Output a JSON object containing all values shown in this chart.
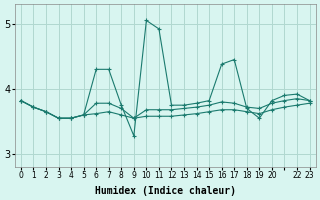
{
  "xlabel": "Humidex (Indice chaleur)",
  "background_color": "#d8f5f0",
  "grid_color": "#b0d8d0",
  "line_color": "#1a7a6e",
  "xlim": [
    -0.5,
    23.5
  ],
  "ylim": [
    2.8,
    5.3
  ],
  "yticks": [
    3,
    4,
    5
  ],
  "xtick_labels": [
    "0",
    "1",
    "2",
    "3",
    "4",
    "5",
    "6",
    "7",
    "8",
    "9",
    "10",
    "11",
    "12",
    "13",
    "14",
    "15",
    "16",
    "17",
    "18",
    "19",
    "20",
    "",
    "22",
    "23"
  ],
  "series": [
    [
      3.82,
      3.72,
      3.65,
      3.55,
      3.55,
      3.6,
      4.3,
      4.3,
      3.75,
      3.28,
      5.05,
      4.92,
      3.75,
      3.75,
      3.78,
      3.82,
      4.38,
      4.45,
      3.7,
      3.55,
      3.82,
      3.9,
      3.92,
      3.82
    ],
    [
      3.82,
      3.72,
      3.65,
      3.55,
      3.55,
      3.6,
      3.78,
      3.78,
      3.7,
      3.55,
      3.68,
      3.68,
      3.68,
      3.7,
      3.72,
      3.75,
      3.8,
      3.78,
      3.72,
      3.7,
      3.78,
      3.82,
      3.85,
      3.82
    ],
    [
      3.82,
      3.72,
      3.65,
      3.55,
      3.55,
      3.6,
      3.62,
      3.65,
      3.6,
      3.55,
      3.58,
      3.58,
      3.58,
      3.6,
      3.62,
      3.65,
      3.68,
      3.68,
      3.65,
      3.62,
      3.68,
      3.72,
      3.75,
      3.78
    ]
  ]
}
